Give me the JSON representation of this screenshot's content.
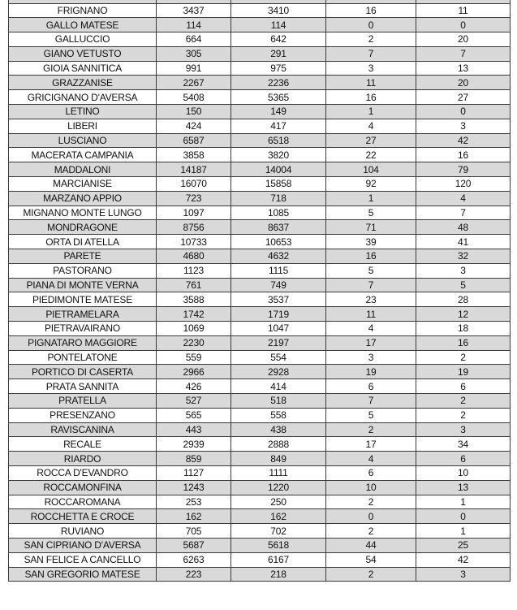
{
  "table": {
    "rows": [
      [
        "FRIGNANO",
        "3437",
        "3410",
        "16",
        "11"
      ],
      [
        "GALLO MATESE",
        "114",
        "114",
        "0",
        "0"
      ],
      [
        "GALLUCCIO",
        "664",
        "642",
        "2",
        "20"
      ],
      [
        "GIANO VETUSTO",
        "305",
        "291",
        "7",
        "7"
      ],
      [
        "GIOIA SANNITICA",
        "991",
        "975",
        "3",
        "13"
      ],
      [
        "GRAZZANISE",
        "2267",
        "2236",
        "11",
        "20"
      ],
      [
        "GRICIGNANO D'AVERSA",
        "5408",
        "5365",
        "16",
        "27"
      ],
      [
        "LETINO",
        "150",
        "149",
        "1",
        "0"
      ],
      [
        "LIBERI",
        "424",
        "417",
        "4",
        "3"
      ],
      [
        "LUSCIANO",
        "6587",
        "6518",
        "27",
        "42"
      ],
      [
        "MACERATA CAMPANIA",
        "3858",
        "3820",
        "22",
        "16"
      ],
      [
        "MADDALONI",
        "14187",
        "14004",
        "104",
        "79"
      ],
      [
        "MARCIANISE",
        "16070",
        "15858",
        "92",
        "120"
      ],
      [
        "MARZANO APPIO",
        "723",
        "718",
        "1",
        "4"
      ],
      [
        "MIGNANO MONTE LUNGO",
        "1097",
        "1085",
        "5",
        "7"
      ],
      [
        "MONDRAGONE",
        "8756",
        "8637",
        "71",
        "48"
      ],
      [
        "ORTA DI ATELLA",
        "10733",
        "10653",
        "39",
        "41"
      ],
      [
        "PARETE",
        "4680",
        "4632",
        "16",
        "32"
      ],
      [
        "PASTORANO",
        "1123",
        "1115",
        "5",
        "3"
      ],
      [
        "PIANA DI MONTE VERNA",
        "761",
        "749",
        "7",
        "5"
      ],
      [
        "PIEDIMONTE MATESE",
        "3588",
        "3537",
        "23",
        "28"
      ],
      [
        "PIETRAMELARA",
        "1742",
        "1719",
        "11",
        "12"
      ],
      [
        "PIETRAVAIRANO",
        "1069",
        "1047",
        "4",
        "18"
      ],
      [
        "PIGNATARO MAGGIORE",
        "2230",
        "2197",
        "17",
        "16"
      ],
      [
        "PONTELATONE",
        "559",
        "554",
        "3",
        "2"
      ],
      [
        "PORTICO DI CASERTA",
        "2966",
        "2928",
        "19",
        "19"
      ],
      [
        "PRATA SANNITA",
        "426",
        "414",
        "6",
        "6"
      ],
      [
        "PRATELLA",
        "527",
        "518",
        "7",
        "2"
      ],
      [
        "PRESENZANO",
        "565",
        "558",
        "5",
        "2"
      ],
      [
        "RAVISCANINA",
        "443",
        "438",
        "2",
        "3"
      ],
      [
        "RECALE",
        "2939",
        "2888",
        "17",
        "34"
      ],
      [
        "RIARDO",
        "859",
        "849",
        "4",
        "6"
      ],
      [
        "ROCCA D'EVANDRO",
        "1127",
        "1111",
        "6",
        "10"
      ],
      [
        "ROCCAMONFINA",
        "1243",
        "1220",
        "10",
        "13"
      ],
      [
        "ROCCAROMANA",
        "253",
        "250",
        "2",
        "1"
      ],
      [
        "ROCCHETTA E CROCE",
        "162",
        "162",
        "0",
        "0"
      ],
      [
        "RUVIANO",
        "705",
        "702",
        "2",
        "1"
      ],
      [
        "SAN CIPRIANO D'AVERSA",
        "5687",
        "5618",
        "44",
        "25"
      ],
      [
        "SAN FELICE A CANCELLO",
        "6263",
        "6167",
        "54",
        "42"
      ],
      [
        "SAN GREGORIO MATESE",
        "223",
        "218",
        "2",
        "3"
      ]
    ],
    "stripe_color": "#d9d9d9"
  }
}
